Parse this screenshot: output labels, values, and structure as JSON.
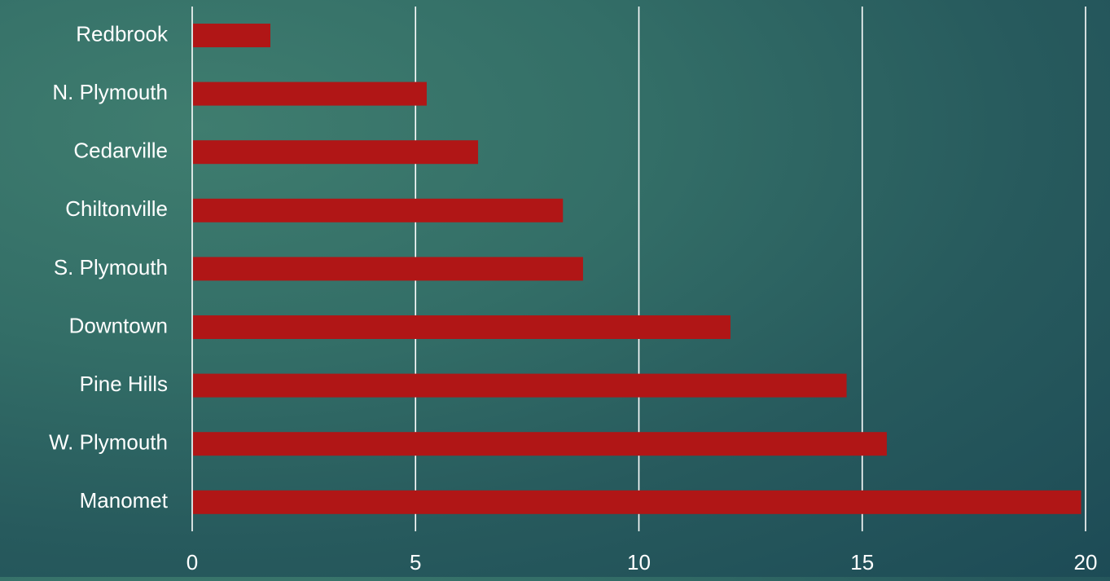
{
  "chart_data": {
    "type": "bar",
    "orientation": "horizontal",
    "categories": [
      "Redbrook",
      "N. Plymouth",
      "Cedarville",
      "Chiltonville",
      "S. Plymouth",
      "Downtown",
      "Pine Hills",
      "W. Plymouth",
      "Manomet"
    ],
    "values": [
      1.75,
      5.25,
      6.4,
      8.3,
      8.75,
      12.05,
      14.65,
      15.55,
      19.9
    ],
    "xticks": [
      "0",
      "5",
      "10",
      "15",
      "20"
    ],
    "xlim": [
      0,
      20
    ],
    "grid": true,
    "title": "",
    "xlabel": "",
    "ylabel": "",
    "colors": {
      "bar": "#b01616",
      "gridline": "#ffffff",
      "text": "#ffffff"
    }
  }
}
